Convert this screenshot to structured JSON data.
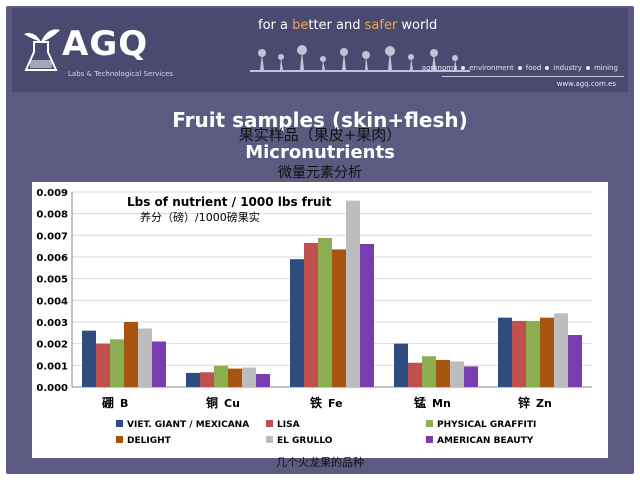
{
  "header": {
    "tagline_pre": "for a ",
    "tagline_be": "be",
    "tagline_mid1": "tter and ",
    "tagline_safer": "safer",
    "tagline_post": " world",
    "logo": "AGQ",
    "logo_sub": "Labs & Technological Services",
    "sectors": [
      "agronomy",
      "environment",
      "food",
      "industry",
      "mining"
    ],
    "website": "www.agq.com.es"
  },
  "titles": {
    "line1": "Fruit samples (skin+flesh)",
    "line1_cn": "果实样品（果皮+果肉）",
    "line2": "Micronutrients",
    "line2_cn": "微量元素分析"
  },
  "footnote": "几个火龙果的品种",
  "chart_data": {
    "type": "bar",
    "title": "Lbs of nutrient / 1000 lbs fruit",
    "subtitle": "养分（磅）/1000磅果实",
    "categories": [
      "B",
      "Cu",
      "Fe",
      "Mn",
      "Zn"
    ],
    "categories_cn": [
      "硼",
      "铜",
      "铁",
      "锰",
      "锌"
    ],
    "ylim": [
      0,
      0.009
    ],
    "yticks": [
      "0.000",
      "0.001",
      "0.002",
      "0.003",
      "0.004",
      "0.005",
      "0.006",
      "0.007",
      "0.008",
      "0.009"
    ],
    "legend_position": "bottom",
    "grid": true,
    "series": [
      {
        "name": "VIET. GIANT / MEXICANA",
        "color": "#2e4c80",
        "values": [
          0.0026,
          0.00065,
          0.0059,
          0.002,
          0.0032
        ]
      },
      {
        "name": "LISA",
        "color": "#c0504d",
        "values": [
          0.002,
          0.00068,
          0.00665,
          0.00112,
          0.00305
        ]
      },
      {
        "name": "PHYSICAL GRAFFITI",
        "color": "#8aae50",
        "values": [
          0.0022,
          0.00098,
          0.00688,
          0.00142,
          0.00305
        ]
      },
      {
        "name": "DELIGHT",
        "color": "#a65410",
        "values": [
          0.003,
          0.00085,
          0.00635,
          0.00125,
          0.0032
        ]
      },
      {
        "name": "EL GRULLO",
        "color": "#bdbdbd",
        "values": [
          0.0027,
          0.0009,
          0.0086,
          0.00118,
          0.0034
        ]
      },
      {
        "name": "AMERICAN BEAUTY",
        "color": "#7a3db0",
        "values": [
          0.0021,
          0.0006,
          0.0066,
          0.00095,
          0.0024
        ]
      }
    ]
  }
}
